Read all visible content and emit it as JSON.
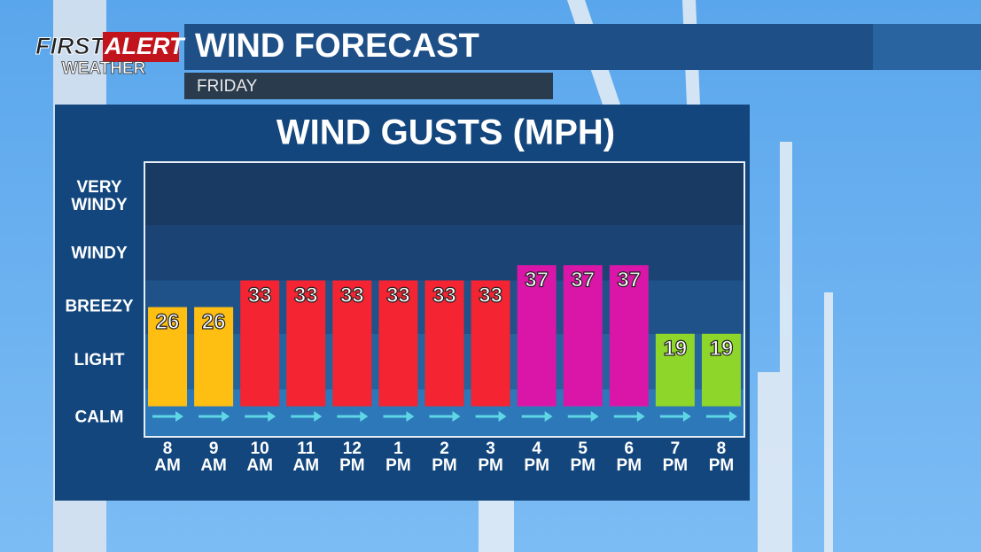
{
  "brand": {
    "first": "FIRST",
    "alert": "ALERT",
    "weather": "WEATHER"
  },
  "heading": "WIND FORECAST",
  "day": "FRIDAY",
  "chart_data": {
    "type": "bar",
    "title": "WIND GUSTS (MPH)",
    "categories": [
      "8 AM",
      "9 AM",
      "10 AM",
      "11 AM",
      "12 PM",
      "1 PM",
      "2 PM",
      "3 PM",
      "4 PM",
      "5 PM",
      "6 PM",
      "7 PM",
      "8 PM"
    ],
    "values": [
      26,
      26,
      33,
      33,
      33,
      33,
      33,
      33,
      37,
      37,
      37,
      19,
      19
    ],
    "colors": [
      "#ffbf12",
      "#ffbf12",
      "#f42433",
      "#f42433",
      "#f42433",
      "#f42433",
      "#f42433",
      "#f42433",
      "#d916a8",
      "#d916a8",
      "#d916a8",
      "#8fd62a",
      "#8fd62a"
    ],
    "ylim": [
      -8,
      64
    ],
    "yticks": [
      {
        "value": -3,
        "label": "CALM"
      },
      {
        "value": 12,
        "label": "LIGHT"
      },
      {
        "value": 26,
        "label": "BREEZY"
      },
      {
        "value": 40,
        "label": "WINDY"
      },
      {
        "value": 55,
        "label": "VERY WINDY"
      }
    ]
  }
}
